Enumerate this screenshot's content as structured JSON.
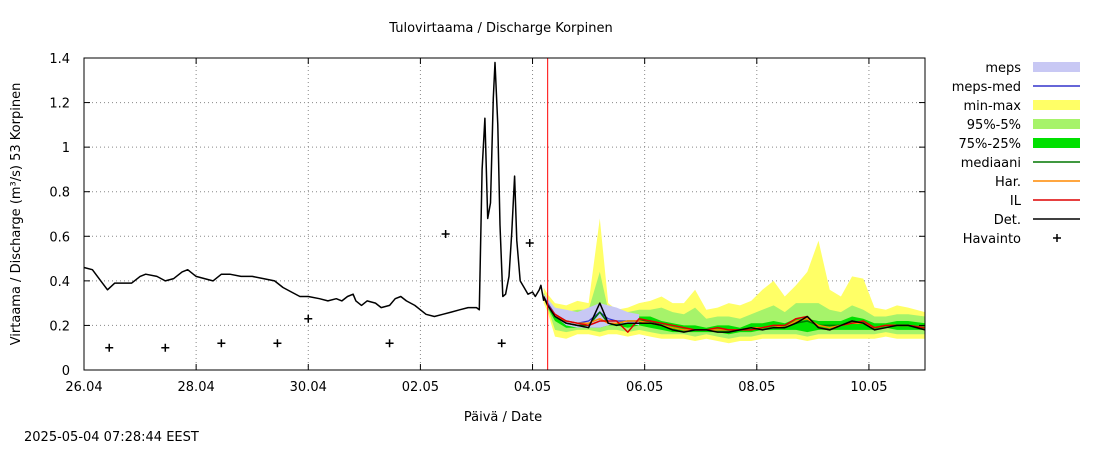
{
  "timestamp": "2025-05-04 07:28:44 EEST",
  "chart_data": {
    "type": "line",
    "title": "Tulovirtaama / Discharge  Korpinen",
    "xlabel": "Päivä / Date",
    "ylabel": "Virtaama / Discharge (m³/s)  53 Korpinen",
    "xlim": [
      0,
      15
    ],
    "ylim": [
      0,
      1.4
    ],
    "x_ticks": [
      {
        "value": 0,
        "label": "26.04"
      },
      {
        "value": 2,
        "label": "28.04"
      },
      {
        "value": 4,
        "label": "30.04"
      },
      {
        "value": 6,
        "label": "02.05"
      },
      {
        "value": 8,
        "label": "04.05"
      },
      {
        "value": 10,
        "label": "06.05"
      },
      {
        "value": 12,
        "label": "08.05"
      },
      {
        "value": 14,
        "label": "10.05"
      }
    ],
    "y_ticks": [
      {
        "value": 0,
        "label": "0"
      },
      {
        "value": 0.2,
        "label": "0.2"
      },
      {
        "value": 0.4,
        "label": "0.4"
      },
      {
        "value": 0.6,
        "label": "0.6"
      },
      {
        "value": 0.8,
        "label": "0.8"
      },
      {
        "value": 1.0,
        "label": "1"
      },
      {
        "value": 1.2,
        "label": "1.2"
      },
      {
        "value": 1.4,
        "label": "1.4"
      }
    ],
    "grid": true,
    "legend_position": "right",
    "forecast_start_x": 8.27,
    "forecast_line_color": "#ff0000",
    "legend": [
      {
        "label": "meps",
        "kind": "band",
        "color": "#c8c8f4"
      },
      {
        "label": "meps-med",
        "kind": "line",
        "color": "#3333cc"
      },
      {
        "label": "min-max",
        "kind": "band",
        "color": "#ffff66"
      },
      {
        "label": "95%-5%",
        "kind": "band",
        "color": "#a6f36a"
      },
      {
        "label": "75%-25%",
        "kind": "band",
        "color": "#00e000"
      },
      {
        "label": "mediaani",
        "kind": "line",
        "color": "#007700"
      },
      {
        "label": "Har.",
        "kind": "line",
        "color": "#ff8800"
      },
      {
        "label": "IL",
        "kind": "line",
        "color": "#dd0000"
      },
      {
        "label": "Det.",
        "kind": "line",
        "color": "#000000"
      },
      {
        "label": "Havainto",
        "kind": "point",
        "color": "#000000"
      }
    ],
    "observations": [
      {
        "x": 0.45,
        "y": 0.1
      },
      {
        "x": 1.45,
        "y": 0.1
      },
      {
        "x": 2.45,
        "y": 0.12
      },
      {
        "x": 3.45,
        "y": 0.12
      },
      {
        "x": 4.0,
        "y": 0.23
      },
      {
        "x": 5.45,
        "y": 0.12
      },
      {
        "x": 6.45,
        "y": 0.61
      },
      {
        "x": 7.45,
        "y": 0.12
      },
      {
        "x": 7.95,
        "y": 0.57
      }
    ],
    "det_history": [
      [
        0.0,
        0.46
      ],
      [
        0.15,
        0.45
      ],
      [
        0.3,
        0.4
      ],
      [
        0.42,
        0.36
      ],
      [
        0.55,
        0.39
      ],
      [
        0.7,
        0.39
      ],
      [
        0.85,
        0.39
      ],
      [
        1.0,
        0.42
      ],
      [
        1.1,
        0.43
      ],
      [
        1.3,
        0.42
      ],
      [
        1.45,
        0.4
      ],
      [
        1.6,
        0.41
      ],
      [
        1.75,
        0.44
      ],
      [
        1.85,
        0.45
      ],
      [
        2.0,
        0.42
      ],
      [
        2.15,
        0.41
      ],
      [
        2.3,
        0.4
      ],
      [
        2.45,
        0.43
      ],
      [
        2.6,
        0.43
      ],
      [
        2.8,
        0.42
      ],
      [
        3.0,
        0.42
      ],
      [
        3.2,
        0.41
      ],
      [
        3.4,
        0.4
      ],
      [
        3.55,
        0.37
      ],
      [
        3.7,
        0.35
      ],
      [
        3.85,
        0.33
      ],
      [
        4.0,
        0.33
      ],
      [
        4.2,
        0.32
      ],
      [
        4.35,
        0.31
      ],
      [
        4.5,
        0.32
      ],
      [
        4.6,
        0.31
      ],
      [
        4.7,
        0.33
      ],
      [
        4.8,
        0.34
      ],
      [
        4.85,
        0.31
      ],
      [
        4.95,
        0.29
      ],
      [
        5.05,
        0.31
      ],
      [
        5.2,
        0.3
      ],
      [
        5.3,
        0.28
      ],
      [
        5.45,
        0.29
      ],
      [
        5.55,
        0.32
      ],
      [
        5.65,
        0.33
      ],
      [
        5.75,
        0.31
      ],
      [
        5.9,
        0.29
      ],
      [
        6.0,
        0.27
      ],
      [
        6.1,
        0.25
      ],
      [
        6.25,
        0.24
      ],
      [
        6.4,
        0.25
      ],
      [
        6.55,
        0.26
      ],
      [
        6.7,
        0.27
      ],
      [
        6.85,
        0.28
      ],
      [
        7.0,
        0.28
      ],
      [
        7.05,
        0.27
      ],
      [
        7.1,
        0.9
      ],
      [
        7.15,
        1.13
      ],
      [
        7.2,
        0.68
      ],
      [
        7.25,
        0.75
      ],
      [
        7.3,
        1.22
      ],
      [
        7.33,
        1.38
      ],
      [
        7.38,
        1.1
      ],
      [
        7.42,
        0.65
      ],
      [
        7.47,
        0.33
      ],
      [
        7.52,
        0.34
      ],
      [
        7.58,
        0.42
      ],
      [
        7.63,
        0.62
      ],
      [
        7.68,
        0.87
      ],
      [
        7.72,
        0.58
      ],
      [
        7.78,
        0.4
      ],
      [
        7.85,
        0.37
      ],
      [
        7.92,
        0.34
      ],
      [
        8.0,
        0.35
      ],
      [
        8.05,
        0.33
      ],
      [
        8.12,
        0.36
      ],
      [
        8.15,
        0.38
      ],
      [
        8.2,
        0.31
      ]
    ],
    "forecast": {
      "x": [
        8.2,
        8.27,
        8.4,
        8.6,
        8.8,
        9.0,
        9.2,
        9.35,
        9.5,
        9.7,
        9.9,
        10.1,
        10.3,
        10.5,
        10.7,
        10.9,
        11.1,
        11.3,
        11.5,
        11.7,
        11.9,
        12.1,
        12.3,
        12.5,
        12.7,
        12.9,
        13.1,
        13.3,
        13.5,
        13.7,
        13.9,
        14.1,
        14.3,
        14.5,
        14.7,
        15.0
      ],
      "min": [
        0.3,
        0.26,
        0.15,
        0.14,
        0.16,
        0.16,
        0.15,
        0.16,
        0.16,
        0.15,
        0.16,
        0.15,
        0.14,
        0.14,
        0.14,
        0.13,
        0.14,
        0.13,
        0.12,
        0.13,
        0.13,
        0.14,
        0.14,
        0.14,
        0.14,
        0.13,
        0.14,
        0.14,
        0.14,
        0.14,
        0.14,
        0.14,
        0.15,
        0.14,
        0.14,
        0.14
      ],
      "max": [
        0.37,
        0.34,
        0.3,
        0.29,
        0.31,
        0.3,
        0.68,
        0.3,
        0.27,
        0.28,
        0.3,
        0.31,
        0.33,
        0.3,
        0.3,
        0.36,
        0.27,
        0.28,
        0.3,
        0.29,
        0.31,
        0.36,
        0.4,
        0.33,
        0.38,
        0.44,
        0.58,
        0.36,
        0.33,
        0.42,
        0.41,
        0.28,
        0.27,
        0.29,
        0.28,
        0.26
      ],
      "p95": [
        0.35,
        0.31,
        0.28,
        0.26,
        0.27,
        0.27,
        0.44,
        0.27,
        0.25,
        0.26,
        0.27,
        0.27,
        0.28,
        0.26,
        0.25,
        0.28,
        0.23,
        0.24,
        0.24,
        0.23,
        0.25,
        0.27,
        0.29,
        0.26,
        0.3,
        0.3,
        0.3,
        0.27,
        0.26,
        0.29,
        0.27,
        0.24,
        0.24,
        0.25,
        0.25,
        0.24
      ],
      "p5": [
        0.32,
        0.28,
        0.18,
        0.17,
        0.18,
        0.18,
        0.17,
        0.18,
        0.18,
        0.17,
        0.18,
        0.17,
        0.16,
        0.16,
        0.16,
        0.15,
        0.16,
        0.15,
        0.14,
        0.15,
        0.15,
        0.16,
        0.16,
        0.16,
        0.16,
        0.15,
        0.16,
        0.16,
        0.16,
        0.16,
        0.16,
        0.16,
        0.17,
        0.16,
        0.16,
        0.16
      ],
      "p75": [
        0.34,
        0.3,
        0.26,
        0.24,
        0.22,
        0.22,
        0.29,
        0.23,
        0.22,
        0.24,
        0.24,
        0.24,
        0.22,
        0.21,
        0.2,
        0.2,
        0.19,
        0.2,
        0.2,
        0.19,
        0.21,
        0.21,
        0.22,
        0.21,
        0.23,
        0.23,
        0.22,
        0.22,
        0.22,
        0.24,
        0.23,
        0.21,
        0.21,
        0.22,
        0.22,
        0.21
      ],
      "p25": [
        0.33,
        0.28,
        0.22,
        0.19,
        0.19,
        0.19,
        0.19,
        0.2,
        0.2,
        0.19,
        0.2,
        0.19,
        0.18,
        0.17,
        0.17,
        0.17,
        0.17,
        0.17,
        0.16,
        0.17,
        0.17,
        0.18,
        0.18,
        0.18,
        0.18,
        0.17,
        0.18,
        0.18,
        0.18,
        0.18,
        0.18,
        0.18,
        0.19,
        0.18,
        0.18,
        0.18
      ],
      "median": [
        0.33,
        0.29,
        0.24,
        0.21,
        0.2,
        0.2,
        0.26,
        0.21,
        0.21,
        0.22,
        0.22,
        0.22,
        0.2,
        0.19,
        0.18,
        0.18,
        0.18,
        0.18,
        0.18,
        0.18,
        0.19,
        0.19,
        0.2,
        0.19,
        0.21,
        0.22,
        0.2,
        0.2,
        0.2,
        0.22,
        0.21,
        0.19,
        0.2,
        0.2,
        0.2,
        0.19
      ],
      "meps_min": [
        0.33,
        0.28,
        0.24,
        0.2,
        0.19,
        0.19,
        0.19,
        0.2,
        0.21,
        0.21,
        0.2
      ],
      "meps_max": [
        0.34,
        0.32,
        0.28,
        0.27,
        0.26,
        0.28,
        0.3,
        0.29,
        0.28,
        0.26,
        0.25
      ],
      "meps_med": [
        0.33,
        0.3,
        0.25,
        0.22,
        0.21,
        0.22,
        0.26,
        0.23,
        0.22,
        0.22,
        0.22
      ],
      "har": [
        0.33,
        0.29,
        0.24,
        0.22,
        0.21,
        0.21,
        0.23,
        0.21,
        0.21,
        0.22,
        0.22,
        0.21,
        0.2,
        0.19,
        0.18,
        0.18,
        0.18,
        0.18,
        0.18,
        0.18,
        0.19,
        0.19,
        0.2,
        0.19,
        0.22,
        0.23,
        0.2,
        0.19,
        0.2,
        0.21,
        0.21,
        0.19,
        0.2,
        0.2,
        0.2,
        0.19
      ],
      "il": [
        0.33,
        0.29,
        0.25,
        0.22,
        0.21,
        0.2,
        0.22,
        0.22,
        0.22,
        0.17,
        0.23,
        0.22,
        0.21,
        0.2,
        0.19,
        0.18,
        0.18,
        0.19,
        0.18,
        0.18,
        0.18,
        0.19,
        0.2,
        0.2,
        0.23,
        0.24,
        0.19,
        0.18,
        0.2,
        0.21,
        0.22,
        0.19,
        0.2,
        0.2,
        0.2,
        0.19
      ],
      "det": [
        0.33,
        0.29,
        0.24,
        0.21,
        0.2,
        0.19,
        0.3,
        0.21,
        0.2,
        0.21,
        0.21,
        0.21,
        0.2,
        0.18,
        0.17,
        0.18,
        0.18,
        0.17,
        0.17,
        0.18,
        0.19,
        0.18,
        0.19,
        0.19,
        0.21,
        0.24,
        0.19,
        0.18,
        0.2,
        0.22,
        0.21,
        0.18,
        0.19,
        0.2,
        0.2,
        0.18
      ]
    }
  }
}
